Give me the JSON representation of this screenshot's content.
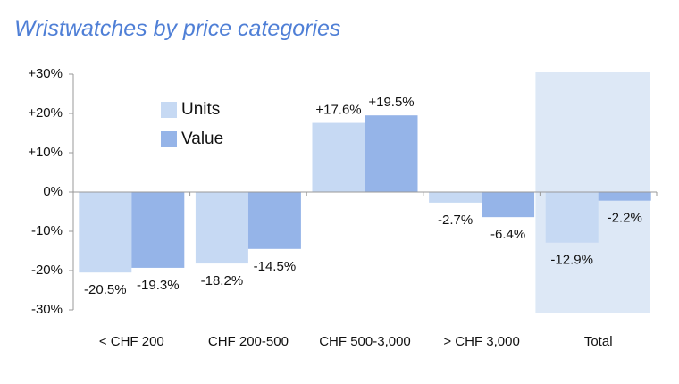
{
  "chart_data": {
    "type": "bar",
    "title": "Wristwatches by price categories",
    "categories": [
      "< CHF 200",
      "CHF 200-500",
      "CHF 500-3,000",
      "> CHF 3,000",
      "Total"
    ],
    "series": [
      {
        "name": "Units",
        "color": "#c6d9f3",
        "values": [
          -20.5,
          -18.2,
          17.6,
          -2.7,
          -12.9
        ],
        "value_labels": [
          "-20.5%",
          "-18.2%",
          "+17.6%",
          "-2.7%",
          "-12.9%"
        ]
      },
      {
        "name": "Value",
        "color": "#95b4e8",
        "values": [
          -19.3,
          -14.5,
          19.5,
          -6.4,
          -2.2
        ],
        "value_labels": [
          "-19.3%",
          "-14.5%",
          "+19.5%",
          "-6.4%",
          "-2.2%"
        ]
      }
    ],
    "ylim": [
      -30,
      30
    ],
    "yticks": [
      {
        "value": -30,
        "label": "-30%"
      },
      {
        "value": -20,
        "label": "-20%"
      },
      {
        "value": -10,
        "label": "-10%"
      },
      {
        "value": 0,
        "label": "0%"
      },
      {
        "value": 10,
        "label": "+10%"
      },
      {
        "value": 20,
        "label": "+20%"
      },
      {
        "value": 30,
        "label": "+30%"
      }
    ],
    "legend": "upper-left"
  }
}
